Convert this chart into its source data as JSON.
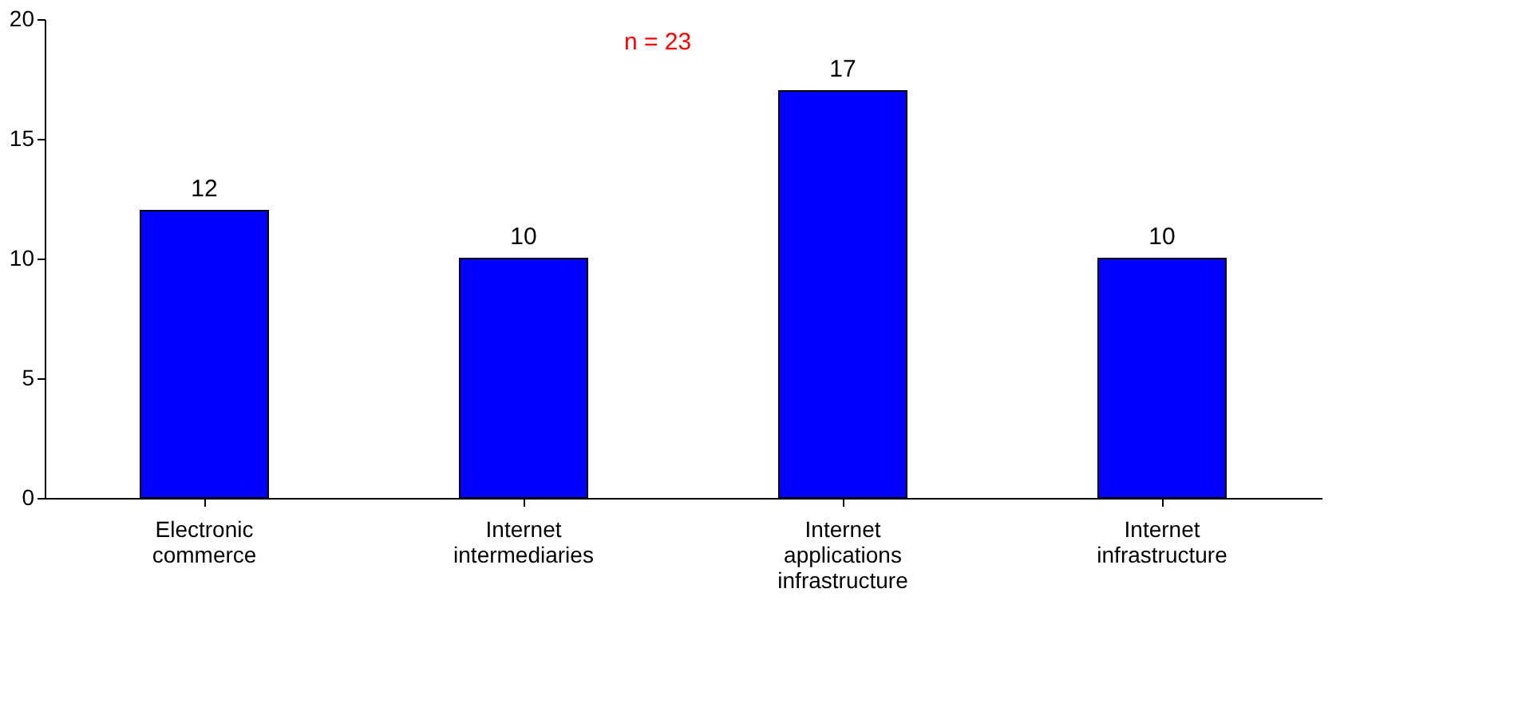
{
  "chart_data": {
    "type": "bar",
    "categories": [
      "Electronic commerce",
      "Internet intermediaries",
      "Internet applications infrastructure",
      "Internet infrastructure"
    ],
    "values": [
      12,
      10,
      17,
      10
    ],
    "color": "#0000ff",
    "ylim": [
      0,
      20
    ],
    "yticks": [
      0,
      5,
      10,
      15,
      20
    ],
    "data_labels": true,
    "grid": false,
    "annotations": [
      "n = 23"
    ]
  }
}
